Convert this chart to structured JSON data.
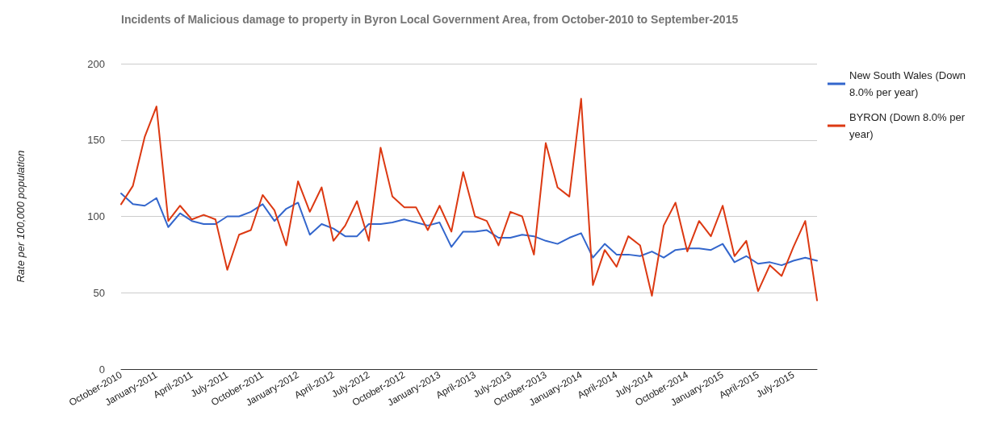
{
  "chart_data": {
    "type": "line",
    "title": "Incidents of Malicious damage to property in Byron Local Government Area, from October-2010 to September-2015",
    "ylabel": "Rate per 100,000 population",
    "categories": [
      "October-2010",
      null,
      null,
      "January-2011",
      null,
      null,
      "April-2011",
      null,
      null,
      "July-2011",
      null,
      null,
      "October-2011",
      null,
      null,
      "January-2012",
      null,
      null,
      "April-2012",
      null,
      null,
      "July-2012",
      null,
      null,
      "October-2012",
      null,
      null,
      "January-2013",
      null,
      null,
      "April-2013",
      null,
      null,
      "July-2013",
      null,
      null,
      "October-2013",
      null,
      null,
      "January-2014",
      null,
      null,
      "April-2014",
      null,
      null,
      "July-2014",
      null,
      null,
      "October-2014",
      null,
      null,
      "January-2015",
      null,
      null,
      "April-2015",
      null,
      null,
      "July-2015",
      null,
      null
    ],
    "series": [
      {
        "name": "New South Wales (Down 8.0% per year)",
        "color": "#3366cc",
        "values": [
          115,
          108,
          107,
          112,
          93,
          102,
          97,
          95,
          95,
          100,
          100,
          103,
          108,
          97,
          105,
          109,
          88,
          95,
          92,
          87,
          87,
          95,
          95,
          96,
          98,
          96,
          94,
          96,
          80,
          90,
          90,
          91,
          86,
          86,
          88,
          87,
          84,
          82,
          86,
          89,
          73,
          82,
          75,
          75,
          74,
          77,
          73,
          78,
          79,
          79,
          78,
          82,
          70,
          74,
          69,
          70,
          68,
          71,
          73,
          71
        ]
      },
      {
        "name": "BYRON (Down 8.0% per year)",
        "color": "#dc3912",
        "values": [
          108,
          120,
          152,
          172,
          97,
          107,
          98,
          101,
          98,
          65,
          88,
          91,
          114,
          104,
          81,
          123,
          103,
          119,
          84,
          94,
          110,
          84,
          145,
          113,
          106,
          106,
          91,
          107,
          90,
          129,
          100,
          97,
          81,
          103,
          100,
          75,
          148,
          119,
          113,
          177,
          55,
          78,
          67,
          87,
          81,
          48,
          94,
          109,
          77,
          97,
          87,
          107,
          74,
          84,
          51,
          68,
          61,
          80,
          97,
          45
        ]
      }
    ],
    "ylim": [
      0,
      200
    ],
    "yticks": [
      0,
      50,
      100,
      150,
      200
    ],
    "grid": "y",
    "legend": "top right",
    "marker": "none",
    "line_style": "solid"
  }
}
